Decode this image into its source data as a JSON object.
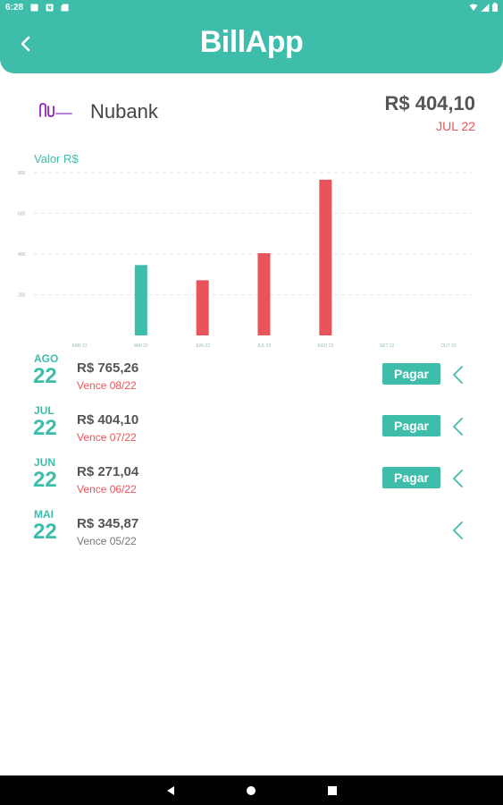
{
  "status_bar": {
    "time": "6:28"
  },
  "header": {
    "app_name": "BillApp"
  },
  "card": {
    "name": "Nubank",
    "total": "R$ 404,10",
    "month": "JUL 22"
  },
  "chart_data": {
    "type": "bar",
    "title": "Valor R$",
    "categories": [
      "ABR 22",
      "MAI 22",
      "JUN 22",
      "JUL 22",
      "AGO 22",
      "SET 22",
      "OUT 22"
    ],
    "values": [
      null,
      345.87,
      271.04,
      404.1,
      765.26,
      null,
      null
    ],
    "colors": [
      "#3dbdaa",
      "#3dbdaa",
      "#e9545a",
      "#e9545a",
      "#e9545a",
      "#e9545a",
      "#e9545a"
    ],
    "yticks": [
      "200",
      "400",
      "600",
      "800"
    ],
    "ylim": [
      0,
      800
    ],
    "grid": true
  },
  "bills": [
    {
      "month": "AGO",
      "year": "22",
      "amount": "R$ 765,26",
      "due": "Vence 08/22",
      "pay_label": "Pagar",
      "has_pay": true,
      "overdue": true
    },
    {
      "month": "JUL",
      "year": "22",
      "amount": "R$ 404,10",
      "due": "Vence 07/22",
      "pay_label": "Pagar",
      "has_pay": true,
      "overdue": true
    },
    {
      "month": "JUN",
      "year": "22",
      "amount": "R$ 271,04",
      "due": "Vence 06/22",
      "pay_label": "Pagar",
      "has_pay": true,
      "overdue": true
    },
    {
      "month": "MAI",
      "year": "22",
      "amount": "R$ 345,87",
      "due": "Vence 05/22",
      "pay_label": "",
      "has_pay": false,
      "overdue": false
    }
  ],
  "colors": {
    "accent": "#3dbdaa",
    "alert": "#e9545a",
    "nubank": "#8a05be"
  }
}
